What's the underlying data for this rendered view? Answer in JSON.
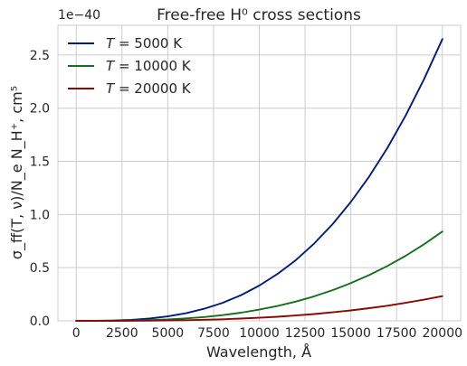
{
  "chart_data": {
    "type": "line",
    "title": "Free-free H⁰ cross sections",
    "xlabel": "Wavelength, Å",
    "ylabel": "σ_ff(T, ν)/N_e N_H⁺, cm⁵",
    "y_multiplier_label": "1e−40",
    "xlim": [
      -1000,
      21000
    ],
    "ylim": [
      0,
      2.78
    ],
    "x_ticks": [
      0,
      2500,
      5000,
      7500,
      10000,
      12500,
      15000,
      17500,
      20000
    ],
    "y_ticks": [
      0.0,
      0.5,
      1.0,
      1.5,
      2.0,
      2.5
    ],
    "grid": true,
    "legend_position": "top-left",
    "x": [
      0,
      1000,
      2000,
      3000,
      4000,
      5000,
      6000,
      7000,
      8000,
      9000,
      10000,
      11000,
      12000,
      13000,
      14000,
      15000,
      16000,
      17000,
      18000,
      19000,
      20000
    ],
    "series": [
      {
        "name": "T = 5000 K",
        "legend_math": "T",
        "legend_rest": " = 5000 K",
        "color": "#001c7f",
        "values": [
          0,
          0.0003,
          0.0027,
          0.0089,
          0.0212,
          0.0414,
          0.0716,
          0.1136,
          0.1696,
          0.2415,
          0.3313,
          0.4409,
          0.5724,
          0.7278,
          0.909,
          1.118,
          1.3569,
          1.6276,
          1.9321,
          2.2724,
          2.65
        ]
      },
      {
        "name": "T = 10000 K",
        "legend_math": "T",
        "legend_rest": " = 10000 K",
        "color": "#12711c",
        "values": [
          0,
          0.0001,
          0.0009,
          0.0028,
          0.0067,
          0.0131,
          0.0227,
          0.036,
          0.0538,
          0.0766,
          0.105,
          0.1398,
          0.1814,
          0.2307,
          0.2881,
          0.3544,
          0.4301,
          0.5159,
          0.6124,
          0.7203,
          0.84
        ]
      },
      {
        "name": "T = 20000 K",
        "legend_math": "T",
        "legend_rest": " = 20000 K",
        "color": "#8c0800",
        "values": [
          0,
          4e-05,
          0.0002,
          0.0008,
          0.0019,
          0.0036,
          0.0063,
          0.0099,
          0.0148,
          0.0211,
          0.029,
          0.0386,
          0.0501,
          0.0637,
          0.0795,
          0.0978,
          0.1187,
          0.1424,
          0.169,
          0.1988,
          0.2318
        ]
      }
    ]
  }
}
